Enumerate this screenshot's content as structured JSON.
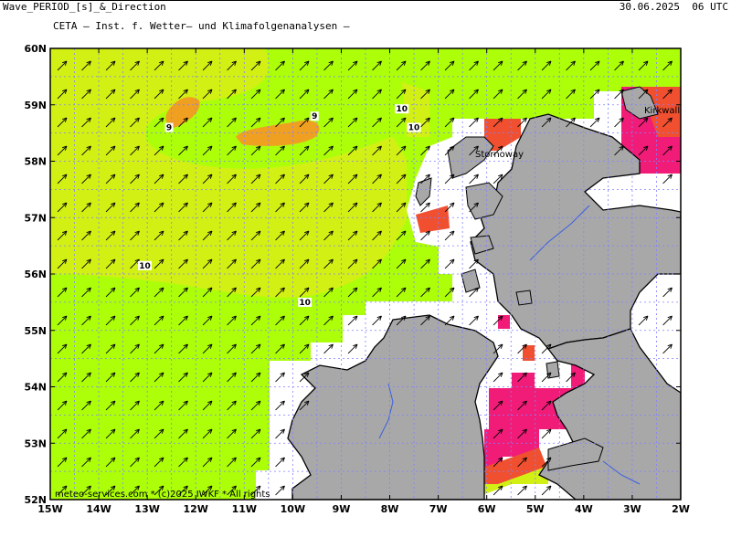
{
  "header": {
    "title": "CETA — Inst. f. Wetter— und Klimafolgenanalysen —",
    "variable": "Wave_PERIOD_[s]_&_Direction",
    "valid_time": "30.06.2025  06 UTC"
  },
  "footer": {
    "credit": "meteo-services.com * (c)2025 IWKF * All rights"
  },
  "axes": {
    "lon_labels": [
      "15W",
      "14W",
      "13W",
      "12W",
      "11W",
      "10W",
      "9W",
      "8W",
      "7W",
      "6W",
      "5W",
      "4W",
      "3W",
      "2W"
    ],
    "lat_labels": [
      "60N",
      "59N",
      "58N",
      "57N",
      "56N",
      "55N",
      "54N",
      "53N",
      "52N"
    ]
  },
  "places": [
    {
      "name": "Stornoway",
      "lon": -6.4,
      "lat": 58.2
    },
    {
      "name": "Kirkwall",
      "lon": -2.95,
      "lat": 58.98
    }
  ],
  "contours": [
    {
      "value": "9",
      "lon": -12.55,
      "lat": 58.55
    },
    {
      "value": "9",
      "lon": -9.55,
      "lat": 58.75
    },
    {
      "value": "10",
      "lon": -7.75,
      "lat": 58.88
    },
    {
      "value": "10",
      "lon": -7.5,
      "lat": 58.55
    },
    {
      "value": "10",
      "lon": -13.05,
      "lat": 56.1
    },
    {
      "value": "10",
      "lon": -9.75,
      "lat": 55.45
    }
  ],
  "colors": {
    "period_9_10": "#f0a020",
    "period_10_11": "#d2f014",
    "period_11_12": "#acff08",
    "period_short": "#f01c78",
    "land": "#a8a8a8",
    "grid": "#8080ff"
  },
  "wave_direction_deg": 45
}
